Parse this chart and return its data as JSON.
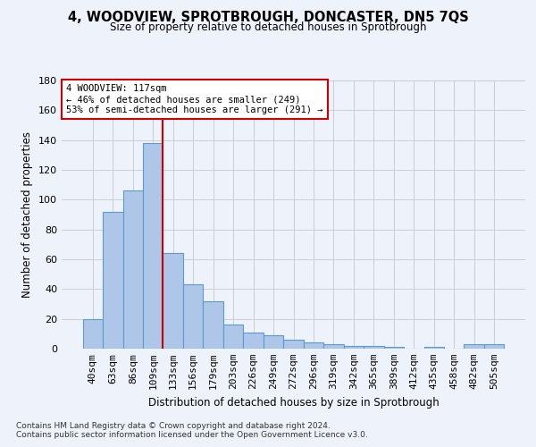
{
  "title1": "4, WOODVIEW, SPROTBROUGH, DONCASTER, DN5 7QS",
  "title2": "Size of property relative to detached houses in Sprotbrough",
  "xlabel": "Distribution of detached houses by size in Sprotbrough",
  "ylabel": "Number of detached properties",
  "footnote1": "Contains HM Land Registry data © Crown copyright and database right 2024.",
  "footnote2": "Contains public sector information licensed under the Open Government Licence v3.0.",
  "annotation_line1": "4 WOODVIEW: 117sqm",
  "annotation_line2": "← 46% of detached houses are smaller (249)",
  "annotation_line3": "53% of semi-detached houses are larger (291) →",
  "bar_color": "#aec6e8",
  "bar_edge_color": "#5b9bd5",
  "vline_color": "#cc0000",
  "categories": [
    "40sqm",
    "63sqm",
    "86sqm",
    "109sqm",
    "133sqm",
    "156sqm",
    "179sqm",
    "203sqm",
    "226sqm",
    "249sqm",
    "272sqm",
    "296sqm",
    "319sqm",
    "342sqm",
    "365sqm",
    "389sqm",
    "412sqm",
    "435sqm",
    "458sqm",
    "482sqm",
    "505sqm"
  ],
  "values": [
    20,
    92,
    106,
    138,
    64,
    43,
    32,
    16,
    11,
    9,
    6,
    4,
    3,
    2,
    2,
    1,
    0,
    1,
    0,
    3,
    3
  ],
  "ylim": [
    0,
    180
  ],
  "yticks": [
    0,
    20,
    40,
    60,
    80,
    100,
    120,
    140,
    160,
    180
  ],
  "vline_position": 3.5,
  "bg_color": "#eef2fa",
  "grid_color": "#c8c8c8",
  "annotation_box_color": "#ffffff",
  "annotation_box_edge": "#cc0000",
  "title1_fontsize": 10.5,
  "title2_fontsize": 8.5,
  "xlabel_fontsize": 8.5,
  "ylabel_fontsize": 8.5,
  "tick_fontsize": 8,
  "annot_fontsize": 7.5,
  "footnote_fontsize": 6.5
}
